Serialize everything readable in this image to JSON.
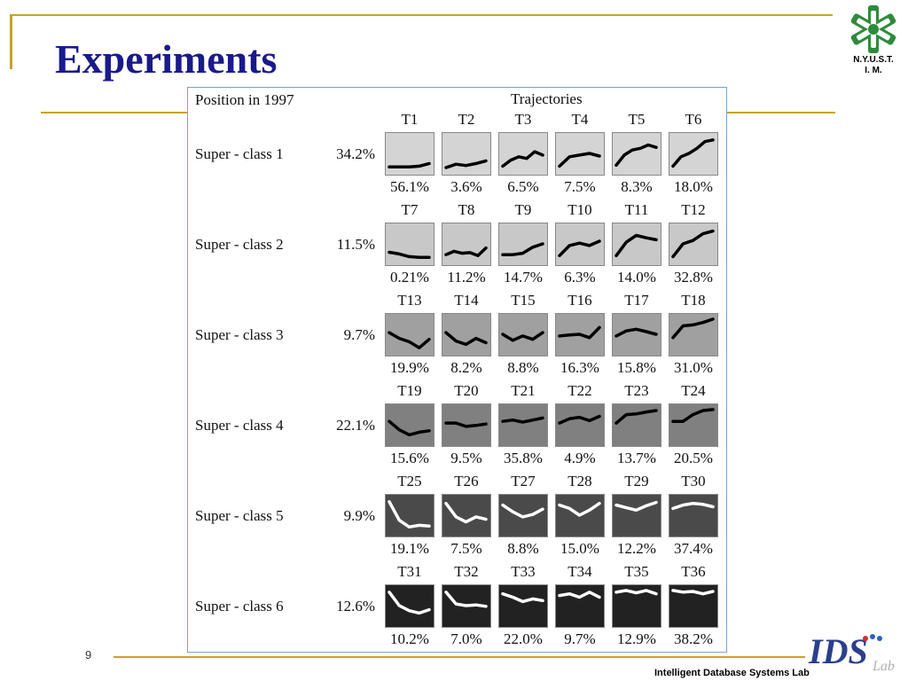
{
  "slide": {
    "title": "Experiments",
    "page_number": "9",
    "footer": "Intelligent Database Systems Lab",
    "logo_text": "N.Y.U.S.T.\nI. M.",
    "ids_logo_text": "IDS",
    "ids_logo_subtext": "Lab"
  },
  "figure": {
    "header_left": "Position in 1997",
    "header_right": "Trajectories",
    "classes": [
      {
        "label": "Super - class 1",
        "pct": "34.2%",
        "fill": "#d4d4d4",
        "line": "#000000",
        "trajectories": [
          {
            "name": "T1",
            "pct": "56.1%",
            "path": [
              0.9,
              0.9,
              0.9,
              0.88,
              0.8
            ]
          },
          {
            "name": "T2",
            "pct": "3.6%",
            "path": [
              0.92,
              0.82,
              0.86,
              0.8,
              0.72
            ]
          },
          {
            "name": "T3",
            "pct": "6.5%",
            "path": [
              0.88,
              0.7,
              0.6,
              0.65,
              0.45,
              0.55
            ]
          },
          {
            "name": "T4",
            "pct": "7.5%",
            "path": [
              0.88,
              0.6,
              0.55,
              0.5,
              0.58
            ]
          },
          {
            "name": "T5",
            "pct": "8.3%",
            "path": [
              0.85,
              0.55,
              0.4,
              0.35,
              0.25,
              0.32
            ]
          },
          {
            "name": "T6",
            "pct": "18.0%",
            "path": [
              0.88,
              0.6,
              0.5,
              0.35,
              0.15,
              0.1
            ]
          }
        ]
      },
      {
        "label": "Super - class 2",
        "pct": "11.5%",
        "fill": "#c8c8c8",
        "line": "#000000",
        "trajectories": [
          {
            "name": "T7",
            "pct": "0.21%",
            "path": [
              0.75,
              0.8,
              0.88,
              0.9,
              0.9
            ]
          },
          {
            "name": "T8",
            "pct": "11.2%",
            "path": [
              0.82,
              0.72,
              0.78,
              0.76,
              0.85,
              0.62
            ]
          },
          {
            "name": "T9",
            "pct": "14.7%",
            "path": [
              0.82,
              0.82,
              0.78,
              0.6,
              0.5
            ]
          },
          {
            "name": "T10",
            "pct": "6.3%",
            "path": [
              0.85,
              0.55,
              0.48,
              0.55,
              0.42
            ]
          },
          {
            "name": "T11",
            "pct": "14.0%",
            "path": [
              0.85,
              0.45,
              0.25,
              0.32,
              0.38
            ]
          },
          {
            "name": "T12",
            "pct": "32.8%",
            "path": [
              0.88,
              0.5,
              0.4,
              0.2,
              0.12
            ]
          }
        ]
      },
      {
        "label": "Super - class 3",
        "pct": "9.7%",
        "fill": "#a0a0a0",
        "line": "#000000",
        "trajectories": [
          {
            "name": "T13",
            "pct": "19.9%",
            "path": [
              0.45,
              0.62,
              0.72,
              0.9,
              0.65
            ]
          },
          {
            "name": "T14",
            "pct": "8.2%",
            "path": [
              0.45,
              0.7,
              0.8,
              0.62,
              0.75
            ]
          },
          {
            "name": "T15",
            "pct": "8.8%",
            "path": [
              0.5,
              0.68,
              0.55,
              0.65,
              0.45
            ]
          },
          {
            "name": "T16",
            "pct": "16.3%",
            "path": [
              0.55,
              0.52,
              0.5,
              0.6,
              0.3
            ]
          },
          {
            "name": "T17",
            "pct": "15.8%",
            "path": [
              0.55,
              0.4,
              0.35,
              0.42,
              0.5
            ]
          },
          {
            "name": "T18",
            "pct": "31.0%",
            "path": [
              0.6,
              0.25,
              0.22,
              0.15,
              0.05
            ]
          }
        ]
      },
      {
        "label": "Super - class 4",
        "pct": "22.1%",
        "fill": "#808080",
        "line": "#000000",
        "trajectories": [
          {
            "name": "T19",
            "pct": "15.6%",
            "path": [
              0.4,
              0.65,
              0.8,
              0.72,
              0.68
            ]
          },
          {
            "name": "T20",
            "pct": "9.5%",
            "path": [
              0.45,
              0.45,
              0.55,
              0.52,
              0.48
            ]
          },
          {
            "name": "T21",
            "pct": "35.8%",
            "path": [
              0.4,
              0.36,
              0.42,
              0.36,
              0.3
            ]
          },
          {
            "name": "T22",
            "pct": "4.9%",
            "path": [
              0.45,
              0.32,
              0.28,
              0.38,
              0.25
            ]
          },
          {
            "name": "T23",
            "pct": "13.7%",
            "path": [
              0.45,
              0.2,
              0.18,
              0.12,
              0.08
            ]
          },
          {
            "name": "T24",
            "pct": "20.5%",
            "path": [
              0.4,
              0.4,
              0.2,
              0.08,
              0.05
            ]
          }
        ]
      },
      {
        "label": "Super - class 5",
        "pct": "9.9%",
        "fill": "#4a4a4a",
        "line": "#ffffff",
        "trajectories": [
          {
            "name": "T25",
            "pct": "19.1%",
            "path": [
              0.1,
              0.65,
              0.85,
              0.8,
              0.82
            ]
          },
          {
            "name": "T26",
            "pct": "7.5%",
            "path": [
              0.15,
              0.55,
              0.7,
              0.55,
              0.62
            ]
          },
          {
            "name": "T27",
            "pct": "8.8%",
            "path": [
              0.2,
              0.4,
              0.55,
              0.48,
              0.32
            ]
          },
          {
            "name": "T28",
            "pct": "15.0%",
            "path": [
              0.2,
              0.3,
              0.5,
              0.35,
              0.15
            ]
          },
          {
            "name": "T29",
            "pct": "12.2%",
            "path": [
              0.2,
              0.28,
              0.35,
              0.22,
              0.12
            ]
          },
          {
            "name": "T30",
            "pct": "37.4%",
            "path": [
              0.3,
              0.2,
              0.15,
              0.18,
              0.25
            ]
          }
        ]
      },
      {
        "label": "Super - class 6",
        "pct": "12.6%",
        "fill": "#222222",
        "line": "#ffffff",
        "trajectories": [
          {
            "name": "T31",
            "pct": "10.2%",
            "path": [
              0.1,
              0.5,
              0.65,
              0.72,
              0.62
            ]
          },
          {
            "name": "T32",
            "pct": "7.0%",
            "path": [
              0.1,
              0.45,
              0.5,
              0.48,
              0.52
            ]
          },
          {
            "name": "T33",
            "pct": "22.0%",
            "path": [
              0.15,
              0.25,
              0.38,
              0.3,
              0.35
            ]
          },
          {
            "name": "T34",
            "pct": "9.7%",
            "path": [
              0.2,
              0.15,
              0.25,
              0.1,
              0.25
            ]
          },
          {
            "name": "T35",
            "pct": "12.9%",
            "path": [
              0.1,
              0.05,
              0.12,
              0.05,
              0.15
            ]
          },
          {
            "name": "T36",
            "pct": "38.2%",
            "path": [
              0.05,
              0.1,
              0.08,
              0.15,
              0.08
            ]
          }
        ]
      }
    ]
  }
}
